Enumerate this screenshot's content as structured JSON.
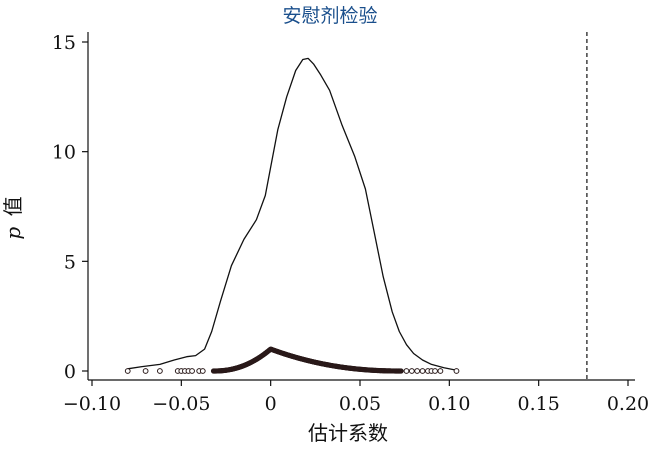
{
  "chart_data": {
    "type": "scatter",
    "title": "安慰剂检验",
    "xlabel": "估计系数",
    "ylabel_symbol": "p",
    "ylabel_text": "值",
    "xlim": [
      -0.1,
      0.2
    ],
    "ylim": [
      0,
      15
    ],
    "x_ticks": [
      -0.1,
      -0.05,
      0,
      0.05,
      0.1,
      0.15,
      0.2
    ],
    "x_tick_labels": [
      "−0.10",
      "−0.05",
      "0",
      "0.05",
      "0.10",
      "0.15",
      "0.20"
    ],
    "y_ticks": [
      0,
      5,
      10,
      15
    ],
    "y_tick_labels": [
      "0",
      "5",
      "10",
      "15"
    ],
    "reference_line_x": 0.177,
    "kernel_density": {
      "x": [
        -0.08,
        -0.072,
        -0.062,
        -0.054,
        -0.047,
        -0.042,
        -0.037,
        -0.033,
        -0.028,
        -0.022,
        -0.015,
        -0.008,
        -0.003,
        0.0,
        0.004,
        0.009,
        0.014,
        0.018,
        0.021,
        0.024,
        0.028,
        0.033,
        0.04,
        0.047,
        0.053,
        0.058,
        0.063,
        0.068,
        0.072,
        0.076,
        0.08,
        0.085,
        0.09,
        0.097,
        0.103
      ],
      "y": [
        0.1,
        0.2,
        0.3,
        0.5,
        0.65,
        0.7,
        1.0,
        1.8,
        3.2,
        4.8,
        6.0,
        6.9,
        8.0,
        9.3,
        11.0,
        12.5,
        13.7,
        14.2,
        14.25,
        14.0,
        13.5,
        12.8,
        11.2,
        9.8,
        8.3,
        6.3,
        4.3,
        2.7,
        1.8,
        1.2,
        0.8,
        0.5,
        0.3,
        0.15,
        0.05
      ]
    },
    "points": {
      "sparse_x": [
        -0.08,
        -0.07,
        -0.062,
        -0.052,
        -0.05,
        -0.048,
        -0.046,
        -0.044,
        -0.04,
        -0.038,
        0.076,
        0.079,
        0.082,
        0.085,
        0.088,
        0.09,
        0.092,
        0.095,
        0.104
      ],
      "dense_x_range": [
        -0.032,
        0.073
      ],
      "dense_peak_x": 0.0,
      "dense_peak_y": 1.0
    },
    "colors": {
      "axis": "#111111",
      "curve": "#111111",
      "points": "#2a1a1a",
      "title": "#1a4f8c"
    }
  }
}
